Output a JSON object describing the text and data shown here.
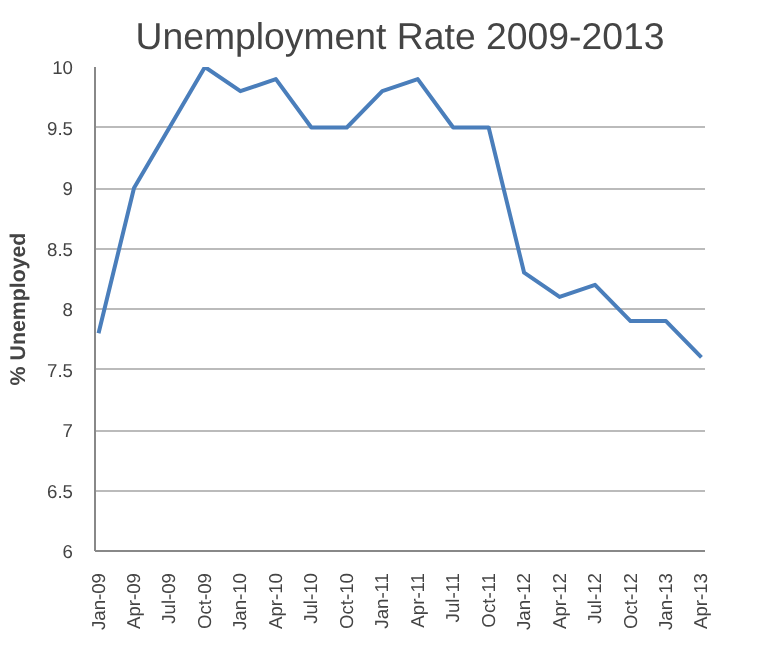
{
  "chart_data": {
    "type": "line",
    "title": "Unemployment Rate 2009-2013",
    "ylabel": "% Unemployed",
    "categories": [
      "Jan-09",
      "Apr-09",
      "Jul-09",
      "Oct-09",
      "Jan-10",
      "Apr-10",
      "Jul-10",
      "Oct-10",
      "Jan-11",
      "Apr-11",
      "Jul-11",
      "Oct-11",
      "Jan-12",
      "Apr-12",
      "Jul-12",
      "Oct-12",
      "Jan-13",
      "Apr-13"
    ],
    "series": [
      {
        "color": "#4a7ebb",
        "values": [
          7.8,
          9.0,
          9.5,
          10.0,
          9.8,
          9.9,
          9.5,
          9.5,
          9.8,
          9.9,
          9.5,
          9.5,
          8.3,
          8.1,
          8.2,
          7.9,
          7.9,
          7.6
        ]
      }
    ],
    "ylim": [
      6,
      10
    ],
    "yticks": [
      6,
      6.5,
      7,
      7.5,
      8,
      8.5,
      9,
      9.5,
      10
    ],
    "grid": "y",
    "marker": "none",
    "line_style": "solid"
  }
}
